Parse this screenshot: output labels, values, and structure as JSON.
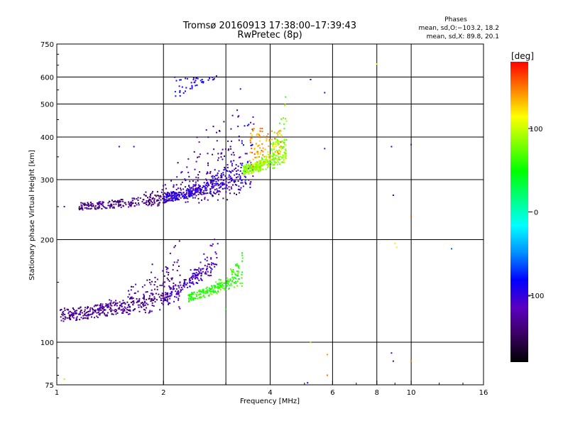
{
  "chart_data": {
    "type": "scatter",
    "title": "Tromsø 20160913 17:38:00–17:39:43",
    "subtitle": "RwPretec (8p)",
    "xlabel": "Frequency [MHz]",
    "ylabel": "Stationary phase Virtual Height [km]",
    "x_scale": "log",
    "y_scale": "log",
    "xlim": [
      1,
      16
    ],
    "ylim": [
      75,
      750
    ],
    "x_ticks": [
      1,
      2,
      4,
      6,
      8,
      10,
      16
    ],
    "y_ticks": [
      75,
      100,
      200,
      300,
      400,
      500,
      600,
      750
    ],
    "x_grid": [
      2,
      3,
      4,
      6,
      8,
      10
    ],
    "y_grid": [
      100,
      200,
      300,
      400,
      500,
      600
    ],
    "grid": true,
    "phase_info": {
      "heading": "Phases",
      "line_o": "mean, sd,O:−103.2, 18.2",
      "line_x": "mean, sd,X:  89.8, 20.1"
    },
    "colorbar": {
      "label": "[deg]",
      "min": -180,
      "max": 180,
      "ticks": [
        100,
        0,
        -100
      ],
      "colors": [
        "#000000",
        "#3a0060",
        "#5a00c0",
        "#0000ff",
        "#0090ff",
        "#00ffff",
        "#00ff80",
        "#00ff00",
        "#80ff00",
        "#ffff00",
        "#ff8000",
        "#ff0000"
      ]
    },
    "clusters": [
      {
        "name": "o-lower",
        "x_range": [
          1.02,
          2.25
        ],
        "y_base": [
          120,
          130
        ],
        "rise": "edge",
        "y_top": 225,
        "phase": -130,
        "spread": 0.09,
        "count": 460
      },
      {
        "name": "o-lower-steep",
        "x_range": [
          2.0,
          2.85
        ],
        "y_base": [
          135,
          165
        ],
        "rise": "edge",
        "y_top": 228,
        "phase": -110,
        "spread": 0.08,
        "count": 170
      },
      {
        "name": "x-lower",
        "x_range": [
          2.35,
          3.35
        ],
        "y_base": [
          135,
          150
        ],
        "rise": "edge",
        "y_top": 192,
        "phase": 60,
        "spread": 0.06,
        "count": 220
      },
      {
        "name": "o-upper",
        "x_range": [
          1.15,
          3.3
        ],
        "y_base": [
          250,
          265
        ],
        "rise": "edge",
        "y_top": 650,
        "phase": -135,
        "spread": 0.05,
        "count": 420
      },
      {
        "name": "o-upper-mid",
        "x_range": [
          2.0,
          3.6
        ],
        "y_base": [
          265,
          290
        ],
        "rise": "edge",
        "y_top": 660,
        "phase": -100,
        "spread": 0.06,
        "count": 380
      },
      {
        "name": "x-upper",
        "x_range": [
          3.35,
          4.45
        ],
        "y_base": [
          320,
          340
        ],
        "rise": "edge",
        "y_top": 560,
        "phase": 85,
        "spread": 0.07,
        "count": 320
      },
      {
        "name": "x-upper-red",
        "x_range": [
          3.5,
          4.3
        ],
        "y_base": [
          330,
          360
        ],
        "rise": "flat",
        "y_top": 420,
        "phase": 140,
        "spread": 0.06,
        "count": 90
      },
      {
        "name": "o-top-branch",
        "x_range": [
          2.15,
          2.85
        ],
        "y_base": [
          520,
          600
        ],
        "rise": "flat",
        "y_top": 600,
        "phase": -95,
        "spread": 0.03,
        "count": 45
      }
    ],
    "points": [
      {
        "x": 1.05,
        "y": 250,
        "phase": -120
      },
      {
        "x": 1.5,
        "y": 375,
        "phase": -110
      },
      {
        "x": 1.65,
        "y": 375,
        "phase": -100
      },
      {
        "x": 1.05,
        "y": 78,
        "phase": 90
      },
      {
        "x": 5.2,
        "y": 590,
        "phase": -90
      },
      {
        "x": 5.7,
        "y": 540,
        "phase": -100
      },
      {
        "x": 5.7,
        "y": 370,
        "phase": -110
      },
      {
        "x": 8.0,
        "y": 655,
        "phase": 110
      },
      {
        "x": 8.8,
        "y": 375,
        "phase": -100
      },
      {
        "x": 8.9,
        "y": 270,
        "phase": -90
      },
      {
        "x": 10.0,
        "y": 380,
        "phase": -120
      },
      {
        "x": 10.0,
        "y": 235,
        "phase": 160
      },
      {
        "x": 9.0,
        "y": 195,
        "phase": 120
      },
      {
        "x": 9.1,
        "y": 190,
        "phase": 110
      },
      {
        "x": 13.0,
        "y": 188,
        "phase": -60
      },
      {
        "x": 5.2,
        "y": 100,
        "phase": 90
      },
      {
        "x": 5.8,
        "y": 92,
        "phase": 140
      },
      {
        "x": 5.8,
        "y": 80,
        "phase": 150
      },
      {
        "x": 5.1,
        "y": 76,
        "phase": -80
      },
      {
        "x": 8.8,
        "y": 93,
        "phase": -120
      },
      {
        "x": 8.9,
        "y": 88,
        "phase": -130
      },
      {
        "x": 10.0,
        "y": 88,
        "phase": 150
      },
      {
        "x": 3.0,
        "y": 125,
        "phase": 40
      }
    ]
  }
}
